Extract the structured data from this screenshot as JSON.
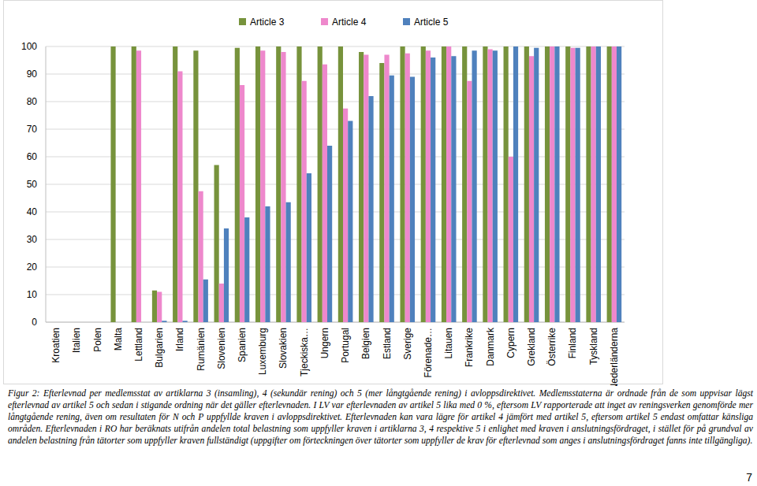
{
  "chart_data": {
    "type": "bar",
    "categories": [
      "Kroatien",
      "Italien",
      "Polen",
      "Malta",
      "Lettland",
      "Bulgarien",
      "Irland",
      "Rumänien",
      "Slovenien",
      "Spanien",
      "Luxemburg",
      "Slovakien",
      "Tjeckiska…",
      "Ungern",
      "Portugal",
      "Belgien",
      "Estland",
      "Sverige",
      "Förenade…",
      "Litauen",
      "Frankrike",
      "Danmark",
      "Cypern",
      "Grekland",
      "Österrike",
      "Finland",
      "Tyskland",
      "Nederländerna"
    ],
    "series": [
      {
        "name": "Article 3",
        "color": "#77933c",
        "values": [
          0,
          0,
          0,
          100,
          100,
          11.5,
          100,
          98.5,
          57,
          99.5,
          100,
          100,
          100,
          100,
          100,
          98,
          94,
          100,
          100,
          100,
          100,
          100,
          100,
          100,
          100,
          100,
          100,
          100
        ]
      },
      {
        "name": "Article 4",
        "color": "#ee88cc",
        "values": [
          0,
          0,
          0,
          0,
          98.5,
          11,
          91,
          47.5,
          14,
          86,
          98.5,
          98,
          87.5,
          93.5,
          77.5,
          97,
          97,
          97.5,
          98.5,
          100,
          87.5,
          99,
          60,
          96.5,
          100,
          99.5,
          100,
          100
        ]
      },
      {
        "name": "Article 5",
        "color": "#4f81bd",
        "values": [
          0,
          0,
          0,
          0,
          0,
          0.5,
          0.5,
          15.5,
          34,
          38,
          42,
          43.5,
          54,
          64,
          73,
          82,
          89.5,
          89,
          96,
          96.5,
          98.5,
          98.5,
          100,
          99.5,
          100,
          99.5,
          100,
          100
        ]
      }
    ],
    "ylim": [
      0,
      100
    ],
    "yticks": [
      0,
      10,
      20,
      30,
      40,
      50,
      60,
      70,
      80,
      90,
      100
    ],
    "grid": true,
    "legend": "top"
  },
  "caption": "Figur 2: Efterlevnad per medlemsstat av artiklarna 3 (insamling), 4 (sekundär rening) och 5 (mer långtgående rening) i avloppsdirektivet. Medlemsstaterna är ordnade från de som uppvisar lägst efterlevnad av artikel 5 och sedan i stigande ordning när det gäller efterlevnaden. I LV var efterlevnaden av artikel 5 lika med 0 %, eftersom LV rapporterade att inget av reningsverken genomförde mer långtgående rening, även om resultaten för N och P uppfyllde kraven i avloppsdirektivet. Efterlevnaden kan vara lägre för artikel 4 jämfört med artikel 5, eftersom artikel 5 endast omfattar känsliga områden. Efterlevnaden i RO har beräknats utifrån andelen total belastning som uppfyller kraven i artiklarna 3, 4 respektive 5 i enlighet med kraven i anslutningsfördraget, i stället för på grundval av andelen belastning från tätorter som uppfyller kraven fullständigt (uppgifter om förteckningen över tätorter som uppfyller de krav för efterlevnad som anges i anslutningsfördraget fanns inte tillgängliga).",
  "page_number": "7"
}
